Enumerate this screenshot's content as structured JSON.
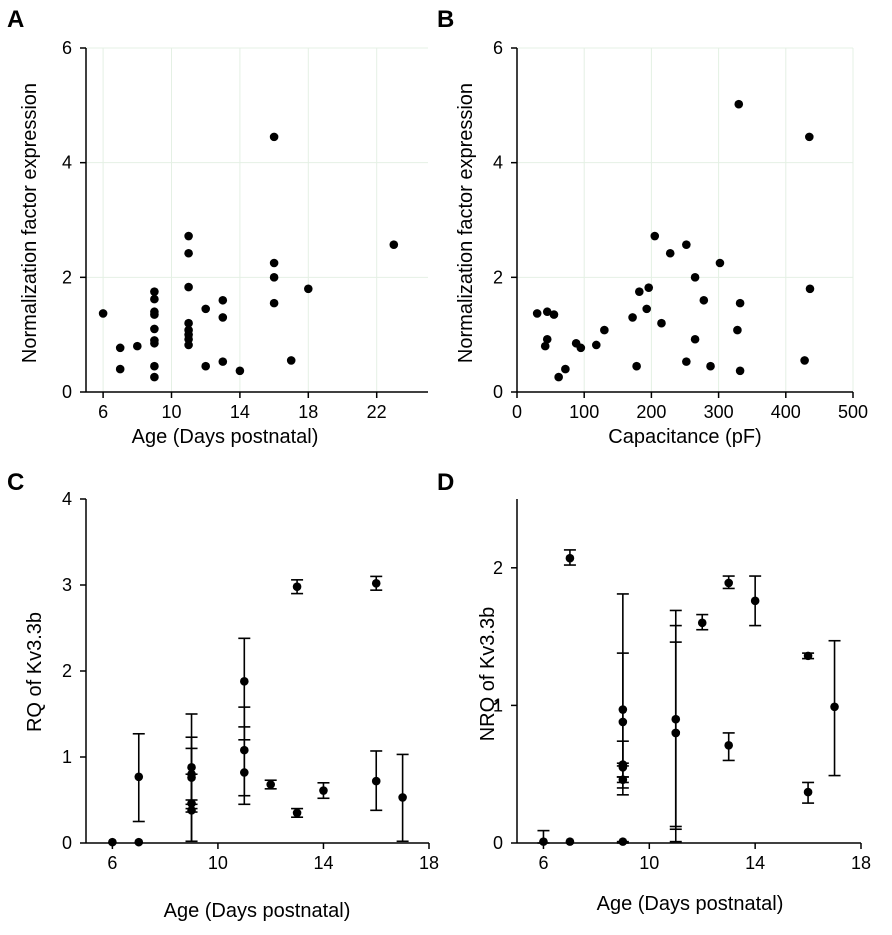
{
  "chart_data": [
    {
      "panel": "A",
      "type": "scatter",
      "title": "",
      "xlabel": "Age (Days postnatal)",
      "ylabel": "Normalization factor expression",
      "xlim": [
        5,
        25
      ],
      "ylim": [
        0,
        6
      ],
      "xticks": [
        6,
        10,
        14,
        18,
        22
      ],
      "yticks": [
        0,
        2,
        4,
        6
      ],
      "grid": true,
      "points": [
        [
          6,
          1.37
        ],
        [
          7,
          0.77
        ],
        [
          7,
          0.4
        ],
        [
          8,
          0.8
        ],
        [
          9,
          1.75
        ],
        [
          9,
          1.62
        ],
        [
          9,
          1.4
        ],
        [
          9,
          1.35
        ],
        [
          9,
          1.1
        ],
        [
          9,
          0.9
        ],
        [
          9,
          0.85
        ],
        [
          9,
          0.45
        ],
        [
          9,
          0.26
        ],
        [
          11,
          2.72
        ],
        [
          11,
          2.42
        ],
        [
          11,
          1.83
        ],
        [
          11,
          1.2
        ],
        [
          11,
          1.08
        ],
        [
          11,
          1.0
        ],
        [
          11,
          0.92
        ],
        [
          11,
          0.82
        ],
        [
          12,
          1.45
        ],
        [
          12,
          0.45
        ],
        [
          13,
          1.6
        ],
        [
          13,
          1.3
        ],
        [
          13,
          0.53
        ],
        [
          14,
          0.37
        ],
        [
          16,
          4.45
        ],
        [
          16,
          2.25
        ],
        [
          16,
          2.0
        ],
        [
          16,
          1.55
        ],
        [
          17,
          0.55
        ],
        [
          18,
          1.8
        ],
        [
          23,
          2.57
        ]
      ]
    },
    {
      "panel": "B",
      "type": "scatter",
      "title": "",
      "xlabel": "Capacitance (pF)",
      "ylabel": "Normalization factor expression",
      "xlim": [
        0,
        500
      ],
      "ylim": [
        0,
        6
      ],
      "xticks": [
        0,
        100,
        200,
        300,
        400,
        500
      ],
      "yticks": [
        0,
        2,
        4,
        6
      ],
      "grid": true,
      "points": [
        [
          30,
          1.37
        ],
        [
          45,
          1.4
        ],
        [
          55,
          1.35
        ],
        [
          45,
          0.92
        ],
        [
          42,
          0.8
        ],
        [
          62,
          0.26
        ],
        [
          72,
          0.4
        ],
        [
          88,
          0.85
        ],
        [
          95,
          0.77
        ],
        [
          118,
          0.82
        ],
        [
          130,
          1.08
        ],
        [
          172,
          1.3
        ],
        [
          178,
          0.45
        ],
        [
          182,
          1.75
        ],
        [
          196,
          1.82
        ],
        [
          193,
          1.45
        ],
        [
          205,
          2.72
        ],
        [
          215,
          1.2
        ],
        [
          228,
          2.42
        ],
        [
          252,
          2.57
        ],
        [
          252,
          0.53
        ],
        [
          265,
          2.0
        ],
        [
          265,
          0.92
        ],
        [
          278,
          1.6
        ],
        [
          288,
          0.45
        ],
        [
          302,
          2.25
        ],
        [
          330,
          5.02
        ],
        [
          332,
          1.55
        ],
        [
          328,
          1.08
        ],
        [
          332,
          0.37
        ],
        [
          428,
          0.55
        ],
        [
          435,
          4.45
        ],
        [
          436,
          1.8
        ]
      ]
    },
    {
      "panel": "C",
      "type": "scatter",
      "title": "",
      "xlabel": "Age (Days postnatal)",
      "ylabel": "RQ of Kv3.3b",
      "xlim": [
        5,
        18
      ],
      "ylim": [
        0,
        4
      ],
      "xticks": [
        6,
        10,
        14,
        18
      ],
      "yticks": [
        0,
        1,
        2,
        3,
        4
      ],
      "grid": false,
      "points": [
        {
          "x": 6,
          "y": 0.01,
          "lo": 0.0,
          "hi": 0.0
        },
        {
          "x": 7,
          "y": 0.01,
          "lo": 0.0,
          "hi": 0.0
        },
        {
          "x": 7,
          "y": 0.77,
          "lo": 0.25,
          "hi": 1.27
        },
        {
          "x": 9,
          "y": 0.88,
          "lo": 0.45,
          "hi": 1.5
        },
        {
          "x": 9,
          "y": 0.8,
          "lo": 0.4,
          "hi": 1.23
        },
        {
          "x": 9,
          "y": 0.76,
          "lo": 0.02,
          "hi": 1.1
        },
        {
          "x": 9,
          "y": 0.46,
          "lo": 0.36,
          "hi": 0.5
        },
        {
          "x": 9,
          "y": 0.38,
          "lo": 0.02,
          "hi": 0.8
        },
        {
          "x": 11,
          "y": 1.88,
          "lo": 1.2,
          "hi": 2.38
        },
        {
          "x": 11,
          "y": 1.08,
          "lo": 0.55,
          "hi": 1.58
        },
        {
          "x": 11,
          "y": 0.82,
          "lo": 0.45,
          "hi": 1.35
        },
        {
          "x": 12,
          "y": 0.68,
          "lo": 0.63,
          "hi": 0.73
        },
        {
          "x": 13,
          "y": 2.98,
          "lo": 2.9,
          "hi": 3.06
        },
        {
          "x": 13,
          "y": 0.35,
          "lo": 0.3,
          "hi": 0.4
        },
        {
          "x": 14,
          "y": 0.61,
          "lo": 0.52,
          "hi": 0.7
        },
        {
          "x": 16,
          "y": 3.02,
          "lo": 2.94,
          "hi": 3.1
        },
        {
          "x": 16,
          "y": 0.72,
          "lo": 0.38,
          "hi": 1.07
        },
        {
          "x": 17,
          "y": 0.53,
          "lo": 0.02,
          "hi": 1.03
        }
      ]
    },
    {
      "panel": "D",
      "type": "scatter",
      "title": "",
      "xlabel": "Age (Days postnatal)",
      "ylabel": "NRQ of Kv3.3b",
      "xlim": [
        5,
        18
      ],
      "ylim": [
        0,
        2.5
      ],
      "xticks": [
        6,
        10,
        14,
        18
      ],
      "yticks": [
        0,
        1,
        2
      ],
      "grid": false,
      "points": [
        {
          "x": 6,
          "y": 0.01,
          "lo": 0.0,
          "hi": 0.09
        },
        {
          "x": 7,
          "y": 0.01,
          "lo": 0.0,
          "hi": 0.0
        },
        {
          "x": 7,
          "y": 2.07,
          "lo": 2.02,
          "hi": 2.13
        },
        {
          "x": 9,
          "y": 0.97,
          "lo": 0.56,
          "hi": 1.81
        },
        {
          "x": 9,
          "y": 0.88,
          "lo": 0.35,
          "hi": 1.38
        },
        {
          "x": 9,
          "y": 0.57,
          "lo": 0.4,
          "hi": 0.74
        },
        {
          "x": 9,
          "y": 0.55,
          "lo": 0.48,
          "hi": 0.58
        },
        {
          "x": 9,
          "y": 0.46,
          "lo": 0.44,
          "hi": 0.48
        },
        {
          "x": 9,
          "y": 0.01,
          "lo": 0.0,
          "hi": 0.01
        },
        {
          "x": 11,
          "y": 0.9,
          "lo": 0.1,
          "hi": 1.69
        },
        {
          "x": 11,
          "y": 0.8,
          "lo": 0.01,
          "hi": 1.58
        },
        {
          "x": 11,
          "y": 0.8,
          "lo": 0.12,
          "hi": 1.46
        },
        {
          "x": 12,
          "y": 1.6,
          "lo": 1.55,
          "hi": 1.66
        },
        {
          "x": 13,
          "y": 1.89,
          "lo": 1.85,
          "hi": 1.94
        },
        {
          "x": 13,
          "y": 0.71,
          "lo": 0.6,
          "hi": 0.8
        },
        {
          "x": 14,
          "y": 1.76,
          "lo": 1.58,
          "hi": 1.94
        },
        {
          "x": 16,
          "y": 1.36,
          "lo": 1.34,
          "hi": 1.38
        },
        {
          "x": 16,
          "y": 0.37,
          "lo": 0.29,
          "hi": 0.44
        },
        {
          "x": 17,
          "y": 0.99,
          "lo": 0.49,
          "hi": 1.47
        }
      ]
    }
  ]
}
